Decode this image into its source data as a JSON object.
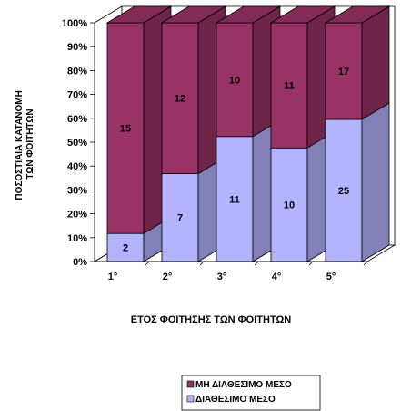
{
  "chart_data": {
    "type": "bar",
    "stacked": "percent",
    "categories": [
      "1°",
      "2°",
      "3°",
      "4°",
      "5°"
    ],
    "series": [
      {
        "name": "ΔΙΑΘΕΣΙΜΟ ΜΕΣΟ",
        "values": [
          2,
          7,
          11,
          10,
          25
        ],
        "color": "#b3b3ff"
      },
      {
        "name": "ΜΗ ΔΙΑΘΕΣΙΜΟ ΜΕΣΟ",
        "values": [
          15,
          12,
          10,
          11,
          17
        ],
        "color": "#993366"
      }
    ],
    "y_ticks": [
      "0%",
      "10%",
      "20%",
      "30%",
      "40%",
      "50%",
      "60%",
      "70%",
      "80%",
      "90%",
      "100%"
    ],
    "ylim": [
      0,
      100
    ],
    "xlabel": "ΕΤΟΣ ΦΟΙΤΗΣΗΣ ΤΩΝ ΦΟΙΤΗΤΩΝ",
    "ylabel_lines": [
      "ΠΟΣΟΣΤΙΑΙΑ ΚΑΤΑΝΟΜΗ",
      "ΤΩΝ ΦΟΙΤΗΤΩΝ"
    ],
    "legend_order": [
      "ΜΗ ΔΙΑΘΕΣΙΜΟ ΜΕΣΟ",
      "ΔΙΑΘΕΣΙΜΟ ΜΕΣΟ"
    ],
    "legend_position": "bottom-right",
    "grid": false,
    "three_d": true
  }
}
